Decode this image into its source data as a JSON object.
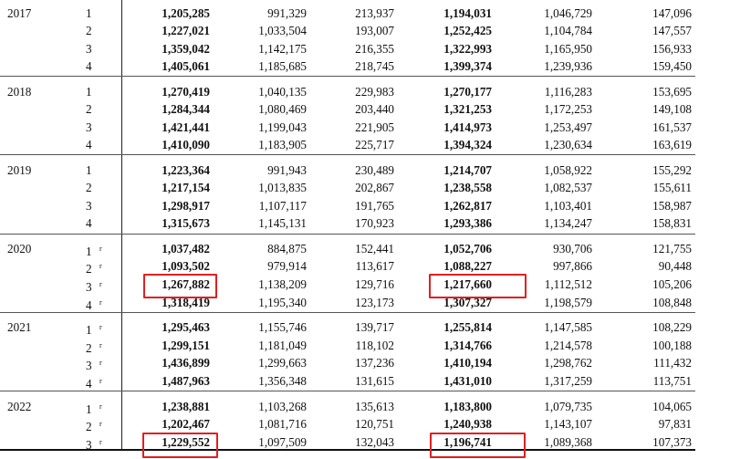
{
  "rows": [
    {
      "year": "2017",
      "q": "1",
      "r": "",
      "c": [
        "1,205,285",
        "991,329",
        "213,937",
        "1,194,031",
        "1,046,729",
        "147,096"
      ]
    },
    {
      "year": "",
      "q": "2",
      "r": "",
      "c": [
        "1,227,021",
        "1,033,504",
        "193,007",
        "1,252,425",
        "1,104,784",
        "147,557"
      ]
    },
    {
      "year": "",
      "q": "3",
      "r": "",
      "c": [
        "1,359,042",
        "1,142,175",
        "216,355",
        "1,322,993",
        "1,165,950",
        "156,933"
      ]
    },
    {
      "year": "",
      "q": "4",
      "r": "",
      "c": [
        "1,405,061",
        "1,185,685",
        "218,745",
        "1,399,374",
        "1,239,936",
        "159,450"
      ]
    },
    {
      "year": "2018",
      "q": "1",
      "r": "",
      "c": [
        "1,270,419",
        "1,040,135",
        "229,983",
        "1,270,177",
        "1,116,283",
        "153,695"
      ]
    },
    {
      "year": "",
      "q": "2",
      "r": "",
      "c": [
        "1,284,344",
        "1,080,469",
        "203,440",
        "1,321,253",
        "1,172,253",
        "149,108"
      ]
    },
    {
      "year": "",
      "q": "3",
      "r": "",
      "c": [
        "1,421,441",
        "1,199,043",
        "221,905",
        "1,414,973",
        "1,253,497",
        "161,537"
      ]
    },
    {
      "year": "",
      "q": "4",
      "r": "",
      "c": [
        "1,410,090",
        "1,183,905",
        "225,717",
        "1,394,324",
        "1,230,634",
        "163,619"
      ]
    },
    {
      "year": "2019",
      "q": "1",
      "r": "",
      "c": [
        "1,223,364",
        "991,943",
        "230,489",
        "1,214,707",
        "1,058,922",
        "155,292"
      ]
    },
    {
      "year": "",
      "q": "2",
      "r": "",
      "c": [
        "1,217,154",
        "1,013,835",
        "202,867",
        "1,238,558",
        "1,082,537",
        "155,611"
      ]
    },
    {
      "year": "",
      "q": "3",
      "r": "",
      "c": [
        "1,298,917",
        "1,107,117",
        "191,765",
        "1,262,817",
        "1,103,401",
        "158,987"
      ]
    },
    {
      "year": "",
      "q": "4",
      "r": "",
      "c": [
        "1,315,673",
        "1,145,131",
        "170,923",
        "1,293,386",
        "1,134,247",
        "158,831"
      ]
    },
    {
      "year": "2020",
      "q": "1",
      "r": "r",
      "c": [
        "1,037,482",
        "884,875",
        "152,441",
        "1,052,706",
        "930,706",
        "121,755"
      ]
    },
    {
      "year": "",
      "q": "2",
      "r": "r",
      "c": [
        "1,093,502",
        "979,914",
        "113,617",
        "1,088,227",
        "997,866",
        "90,448"
      ]
    },
    {
      "year": "",
      "q": "3",
      "r": "r",
      "c": [
        "1,267,882",
        "1,138,209",
        "129,716",
        "1,217,660",
        "1,112,512",
        "105,206"
      ]
    },
    {
      "year": "",
      "q": "4",
      "r": "r",
      "c": [
        "1,318,419",
        "1,195,340",
        "123,173",
        "1,307,327",
        "1,198,579",
        "108,848"
      ]
    },
    {
      "year": "2021",
      "q": "1",
      "r": "r",
      "c": [
        "1,295,463",
        "1,155,746",
        "139,717",
        "1,255,814",
        "1,147,585",
        "108,229"
      ]
    },
    {
      "year": "",
      "q": "2",
      "r": "r",
      "c": [
        "1,299,151",
        "1,181,049",
        "118,102",
        "1,314,766",
        "1,214,578",
        "100,188"
      ]
    },
    {
      "year": "",
      "q": "3",
      "r": "r",
      "c": [
        "1,436,899",
        "1,299,663",
        "137,236",
        "1,410,194",
        "1,298,762",
        "111,432"
      ]
    },
    {
      "year": "",
      "q": "4",
      "r": "r",
      "c": [
        "1,487,963",
        "1,356,348",
        "131,615",
        "1,431,010",
        "1,317,259",
        "113,751"
      ]
    },
    {
      "year": "2022",
      "q": "1",
      "r": "r",
      "c": [
        "1,238,881",
        "1,103,268",
        "135,613",
        "1,183,800",
        "1,079,735",
        "104,065"
      ]
    },
    {
      "year": "",
      "q": "2",
      "r": "r",
      "c": [
        "1,202,467",
        "1,081,716",
        "120,751",
        "1,240,938",
        "1,143,107",
        "97,831"
      ]
    },
    {
      "year": "",
      "q": "3",
      "r": "r",
      "c": [
        "1,229,552",
        "1,097,509",
        "132,043",
        "1,196,741",
        "1,089,368",
        "107,373"
      ]
    }
  ],
  "colors": {
    "highlight_box": "#e02020",
    "text": "#111111"
  }
}
